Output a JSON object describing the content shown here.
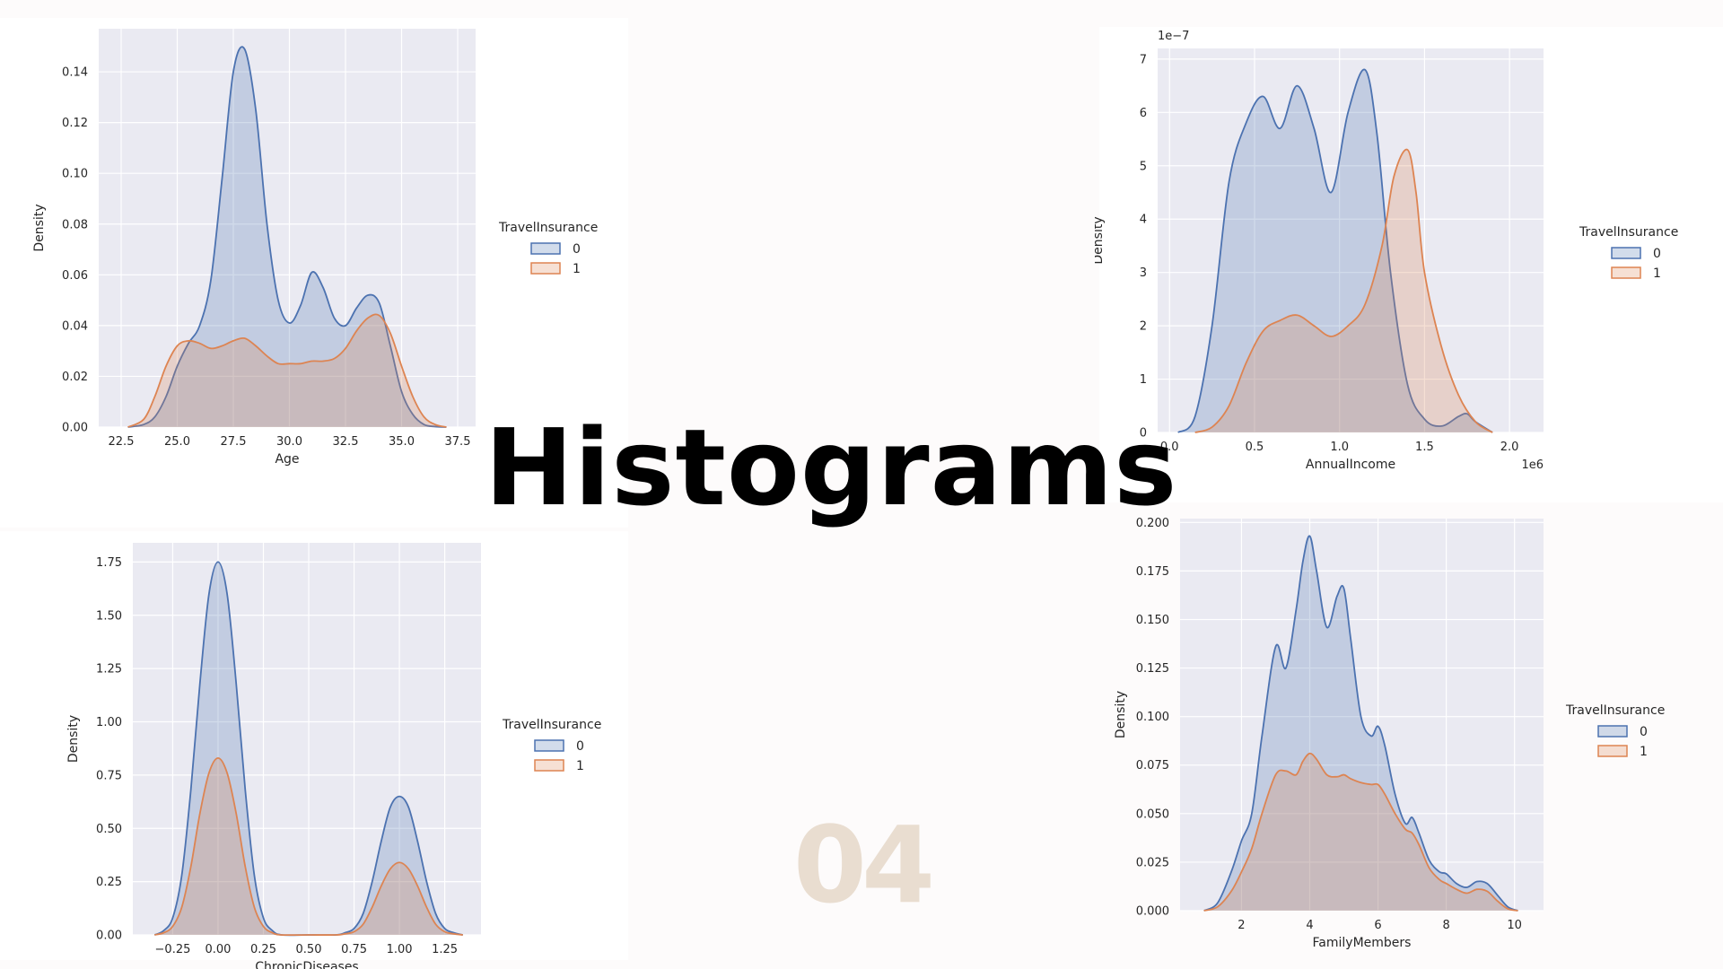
{
  "slide": {
    "title": "Histograms",
    "page_number": "04"
  },
  "colors": {
    "plot_bg": "#eaeaf2",
    "grid": "#ffffff",
    "series0_line": "#4c72b0",
    "series0_fill": "rgba(76,114,176,0.25)",
    "series1_line": "#dd8452",
    "series1_fill": "rgba(221,132,82,0.25)",
    "title": "#000000",
    "page_number": "#e9ddd0"
  },
  "chart_data": [
    {
      "id": "age",
      "type": "area",
      "xlabel": "Age",
      "ylabel": "Density",
      "xlim": [
        21.5,
        38.3
      ],
      "ylim": [
        0,
        0.157
      ],
      "xticks": [
        22.5,
        25.0,
        27.5,
        30.0,
        32.5,
        35.0,
        37.5
      ],
      "xtick_labels": [
        "22.5",
        "25.0",
        "27.5",
        "30.0",
        "32.5",
        "35.0",
        "37.5"
      ],
      "yticks": [
        0,
        0.02,
        0.04,
        0.06,
        0.08,
        0.1,
        0.12,
        0.14
      ],
      "ytick_labels": [
        "0.00",
        "0.02",
        "0.04",
        "0.06",
        "0.08",
        "0.10",
        "0.12",
        "0.14"
      ],
      "offset_text": "",
      "legend": {
        "title": "TravelInsurance",
        "entries": [
          "0",
          "1"
        ]
      },
      "series": [
        {
          "name": "0",
          "x": [
            22.8,
            23.5,
            24.0,
            24.5,
            25.0,
            25.5,
            26.0,
            26.5,
            27.0,
            27.5,
            28.0,
            28.5,
            29.0,
            29.5,
            30.0,
            30.5,
            31.0,
            31.5,
            32.0,
            32.5,
            33.0,
            33.5,
            34.0,
            34.5,
            35.0,
            35.5,
            36.0,
            36.5,
            37.0
          ],
          "y": [
            0,
            0.001,
            0.004,
            0.012,
            0.024,
            0.033,
            0.04,
            0.058,
            0.098,
            0.14,
            0.149,
            0.125,
            0.08,
            0.05,
            0.041,
            0.048,
            0.061,
            0.055,
            0.043,
            0.04,
            0.047,
            0.052,
            0.049,
            0.032,
            0.014,
            0.005,
            0.001,
            0.0002,
            0
          ]
        },
        {
          "name": "1",
          "x": [
            22.8,
            23.5,
            24.0,
            24.5,
            25.0,
            25.5,
            26.0,
            26.5,
            27.0,
            27.5,
            28.0,
            28.5,
            29.0,
            29.5,
            30.0,
            30.5,
            31.0,
            31.5,
            32.0,
            32.5,
            33.0,
            33.5,
            34.0,
            34.5,
            35.0,
            35.5,
            36.0,
            36.5,
            37.0
          ],
          "y": [
            0,
            0.003,
            0.012,
            0.024,
            0.032,
            0.034,
            0.033,
            0.031,
            0.032,
            0.034,
            0.035,
            0.032,
            0.028,
            0.025,
            0.025,
            0.025,
            0.026,
            0.026,
            0.027,
            0.031,
            0.038,
            0.043,
            0.044,
            0.037,
            0.024,
            0.012,
            0.004,
            0.001,
            0
          ]
        }
      ]
    },
    {
      "id": "annual_income",
      "type": "area",
      "xlabel": "AnnualIncome",
      "ylabel": "Density",
      "xlim": [
        -0.07,
        2.2
      ],
      "ylim": [
        0,
        7.2
      ],
      "xticks": [
        0.0,
        0.5,
        1.0,
        1.5,
        2.0
      ],
      "xtick_labels": [
        "0.0",
        "0.5",
        "1.0",
        "1.5",
        "2.0"
      ],
      "yticks": [
        0,
        1,
        2,
        3,
        4,
        5,
        6,
        7
      ],
      "ytick_labels": [
        "0",
        "1",
        "2",
        "3",
        "4",
        "5",
        "6",
        "7"
      ],
      "offset_text": "1e−7",
      "x_offset_text": "1e6",
      "legend": {
        "title": "TravelInsurance",
        "entries": [
          "0",
          "1"
        ]
      },
      "series": [
        {
          "name": "0",
          "x": [
            0.05,
            0.15,
            0.25,
            0.35,
            0.45,
            0.55,
            0.65,
            0.75,
            0.85,
            0.95,
            1.05,
            1.15,
            1.22,
            1.3,
            1.4,
            1.5,
            1.6,
            1.7,
            1.75,
            1.8,
            1.9
          ],
          "y": [
            0,
            0.3,
            2.0,
            4.7,
            5.8,
            6.3,
            5.7,
            6.5,
            5.7,
            4.5,
            6.0,
            6.8,
            5.6,
            3.0,
            0.9,
            0.25,
            0.12,
            0.3,
            0.35,
            0.2,
            0
          ]
        },
        {
          "name": "1",
          "x": [
            0.15,
            0.25,
            0.35,
            0.45,
            0.55,
            0.65,
            0.75,
            0.85,
            0.95,
            1.05,
            1.15,
            1.25,
            1.32,
            1.4,
            1.45,
            1.5,
            1.6,
            1.7,
            1.8,
            1.9
          ],
          "y": [
            0,
            0.1,
            0.5,
            1.3,
            1.9,
            2.1,
            2.2,
            2.0,
            1.8,
            2.0,
            2.4,
            3.5,
            4.8,
            5.3,
            4.5,
            3.0,
            1.6,
            0.7,
            0.2,
            0
          ]
        }
      ]
    },
    {
      "id": "chronic_diseases",
      "type": "area",
      "xlabel": "ChronicDiseases",
      "ylabel": "Density",
      "xlim": [
        -0.47,
        1.45
      ],
      "ylim": [
        0,
        1.84
      ],
      "xticks": [
        -0.25,
        0.0,
        0.25,
        0.5,
        0.75,
        1.0,
        1.25
      ],
      "xtick_labels": [
        "−0.25",
        "0.00",
        "0.25",
        "0.50",
        "0.75",
        "1.00",
        "1.25"
      ],
      "yticks": [
        0,
        0.25,
        0.5,
        0.75,
        1.0,
        1.25,
        1.5,
        1.75
      ],
      "ytick_labels": [
        "0.00",
        "0.25",
        "0.50",
        "0.75",
        "1.00",
        "1.25",
        "1.50",
        "1.75"
      ],
      "offset_text": "",
      "legend": {
        "title": "TravelInsurance",
        "entries": [
          "0",
          "1"
        ]
      },
      "series": [
        {
          "name": "0",
          "x": [
            -0.35,
            -0.3,
            -0.25,
            -0.2,
            -0.15,
            -0.1,
            -0.05,
            0.0,
            0.05,
            0.1,
            0.15,
            0.2,
            0.25,
            0.3,
            0.35,
            0.5,
            0.65,
            0.7,
            0.75,
            0.8,
            0.85,
            0.9,
            0.95,
            1.0,
            1.05,
            1.1,
            1.15,
            1.2,
            1.25,
            1.3,
            1.35
          ],
          "y": [
            0,
            0.02,
            0.08,
            0.28,
            0.68,
            1.18,
            1.6,
            1.75,
            1.6,
            1.18,
            0.68,
            0.28,
            0.08,
            0.02,
            0,
            0,
            0,
            0.01,
            0.03,
            0.1,
            0.25,
            0.44,
            0.6,
            0.65,
            0.6,
            0.44,
            0.25,
            0.1,
            0.03,
            0.01,
            0
          ]
        },
        {
          "name": "1",
          "x": [
            -0.35,
            -0.3,
            -0.25,
            -0.2,
            -0.15,
            -0.1,
            -0.05,
            0.0,
            0.05,
            0.1,
            0.15,
            0.2,
            0.25,
            0.3,
            0.35,
            0.5,
            0.65,
            0.7,
            0.75,
            0.8,
            0.85,
            0.9,
            0.95,
            1.0,
            1.05,
            1.1,
            1.15,
            1.2,
            1.25,
            1.3,
            1.35
          ],
          "y": [
            0,
            0.01,
            0.04,
            0.13,
            0.32,
            0.57,
            0.76,
            0.83,
            0.76,
            0.57,
            0.32,
            0.13,
            0.04,
            0.01,
            0,
            0,
            0,
            0.005,
            0.015,
            0.05,
            0.13,
            0.23,
            0.31,
            0.34,
            0.31,
            0.23,
            0.13,
            0.05,
            0.015,
            0.005,
            0
          ]
        }
      ]
    },
    {
      "id": "family_members",
      "type": "area",
      "xlabel": "FamilyMembers",
      "ylabel": "Density",
      "xlim": [
        0.2,
        10.85
      ],
      "ylim": [
        0,
        0.202
      ],
      "xticks": [
        2,
        4,
        6,
        8,
        10
      ],
      "xtick_labels": [
        "2",
        "4",
        "6",
        "8",
        "10"
      ],
      "yticks": [
        0,
        0.025,
        0.05,
        0.075,
        0.1,
        0.125,
        0.15,
        0.175,
        0.2
      ],
      "ytick_labels": [
        "0.000",
        "0.025",
        "0.050",
        "0.075",
        "0.100",
        "0.125",
        "0.150",
        "0.175",
        "0.200"
      ],
      "offset_text": "",
      "legend": {
        "title": "TravelInsurance",
        "entries": [
          "0",
          "1"
        ]
      },
      "series": [
        {
          "name": "0",
          "x": [
            0.9,
            1.3,
            1.7,
            2.0,
            2.3,
            2.6,
            3.0,
            3.3,
            3.6,
            3.8,
            4.0,
            4.2,
            4.5,
            4.8,
            5.0,
            5.2,
            5.5,
            5.8,
            6.0,
            6.2,
            6.5,
            6.8,
            7.0,
            7.2,
            7.5,
            7.8,
            8.0,
            8.3,
            8.6,
            8.9,
            9.2,
            9.5,
            9.8,
            10.1
          ],
          "y": [
            0,
            0.004,
            0.02,
            0.036,
            0.05,
            0.09,
            0.136,
            0.125,
            0.155,
            0.18,
            0.193,
            0.175,
            0.146,
            0.162,
            0.166,
            0.14,
            0.1,
            0.09,
            0.095,
            0.085,
            0.06,
            0.045,
            0.048,
            0.04,
            0.026,
            0.02,
            0.019,
            0.014,
            0.012,
            0.015,
            0.014,
            0.008,
            0.002,
            0
          ]
        },
        {
          "name": "1",
          "x": [
            0.9,
            1.3,
            1.7,
            2.0,
            2.3,
            2.6,
            3.0,
            3.3,
            3.6,
            3.8,
            4.0,
            4.2,
            4.5,
            4.8,
            5.0,
            5.2,
            5.5,
            5.8,
            6.0,
            6.2,
            6.5,
            6.8,
            7.0,
            7.2,
            7.5,
            7.8,
            8.0,
            8.3,
            8.6,
            8.9,
            9.2,
            9.5,
            9.8,
            10.1
          ],
          "y": [
            0,
            0.002,
            0.01,
            0.02,
            0.032,
            0.05,
            0.07,
            0.072,
            0.07,
            0.077,
            0.081,
            0.078,
            0.07,
            0.069,
            0.07,
            0.068,
            0.066,
            0.065,
            0.065,
            0.06,
            0.05,
            0.042,
            0.04,
            0.034,
            0.022,
            0.016,
            0.014,
            0.011,
            0.009,
            0.011,
            0.01,
            0.005,
            0.001,
            0
          ]
        }
      ]
    }
  ]
}
